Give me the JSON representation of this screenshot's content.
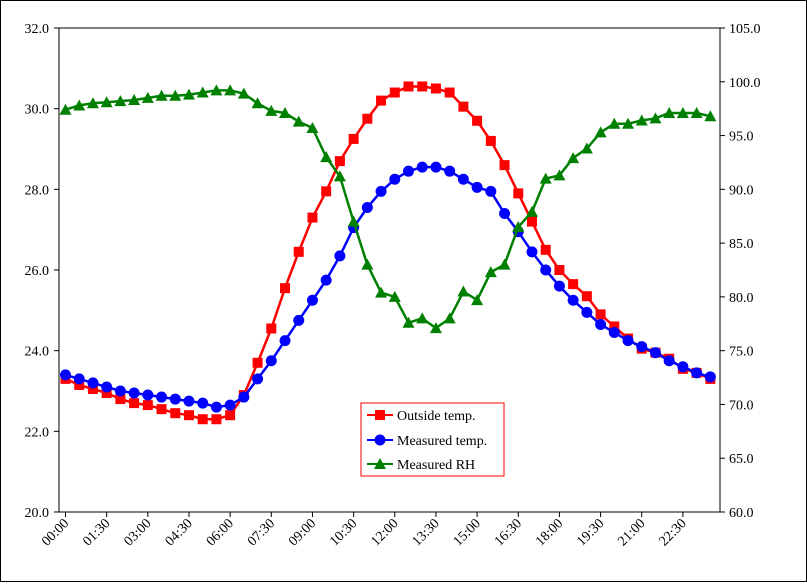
{
  "chart_data": {
    "type": "line",
    "title": "",
    "xlabel": "",
    "ylabel": "",
    "y2label": "",
    "x": [
      "00:00",
      "00:30",
      "01:00",
      "01:30",
      "02:00",
      "02:30",
      "03:00",
      "03:30",
      "04:00",
      "04:30",
      "05:00",
      "05:30",
      "06:00",
      "06:30",
      "07:00",
      "07:30",
      "08:00",
      "08:30",
      "09:00",
      "09:30",
      "10:00",
      "10:30",
      "11:00",
      "11:30",
      "12:00",
      "12:30",
      "13:00",
      "13:30",
      "14:00",
      "14:30",
      "15:00",
      "15:30",
      "16:00",
      "16:30",
      "17:00",
      "17:30",
      "18:00",
      "18:30",
      "19:00",
      "19:30",
      "20:00",
      "20:30",
      "21:00",
      "21:30",
      "22:00",
      "22:30",
      "23:00",
      "23:30"
    ],
    "x_tick_labels": [
      "00:00",
      "01:30",
      "03:00",
      "04:30",
      "06:00",
      "07:30",
      "09:00",
      "10:30",
      "12:00",
      "13:30",
      "15:00",
      "16:30",
      "18:00",
      "19:30",
      "21:00",
      "22:30"
    ],
    "ylim": [
      20,
      32
    ],
    "y_ticks": [
      "20.0",
      "22.0",
      "24.0",
      "26.0",
      "28.0",
      "30.0",
      "32.0"
    ],
    "y2lim": [
      60,
      105
    ],
    "y2_ticks": [
      "60.0",
      "65.0",
      "70.0",
      "75.0",
      "80.0",
      "85.0",
      "90.0",
      "95.0",
      "100.0",
      "105.0"
    ],
    "grid": false,
    "legend_position": "bottom-center",
    "series": [
      {
        "name": "Outside temp.",
        "axis": "left",
        "color": "#ff0000",
        "marker": "square",
        "values": [
          23.3,
          23.15,
          23.05,
          22.95,
          22.8,
          22.7,
          22.65,
          22.55,
          22.45,
          22.4,
          22.3,
          22.3,
          22.4,
          22.9,
          23.7,
          24.55,
          25.55,
          26.45,
          27.3,
          27.95,
          28.7,
          29.25,
          29.75,
          30.2,
          30.4,
          30.55,
          30.55,
          30.5,
          30.4,
          30.05,
          29.7,
          29.2,
          28.6,
          27.9,
          27.2,
          26.5,
          26.0,
          25.65,
          25.35,
          24.9,
          24.6,
          24.3,
          24.05,
          23.95,
          23.8,
          23.55,
          23.45,
          23.3
        ]
      },
      {
        "name": "Measured temp.",
        "axis": "left",
        "color": "#0000ff",
        "marker": "circle",
        "values": [
          23.4,
          23.3,
          23.2,
          23.1,
          23.0,
          22.95,
          22.9,
          22.85,
          22.8,
          22.75,
          22.7,
          22.6,
          22.65,
          22.85,
          23.3,
          23.75,
          24.25,
          24.75,
          25.25,
          25.75,
          26.35,
          27.05,
          27.55,
          27.95,
          28.25,
          28.45,
          28.55,
          28.55,
          28.45,
          28.25,
          28.05,
          27.95,
          27.4,
          26.95,
          26.45,
          26.0,
          25.6,
          25.25,
          24.95,
          24.65,
          24.45,
          24.25,
          24.1,
          23.95,
          23.75,
          23.6,
          23.45,
          23.35
        ]
      },
      {
        "name": "Measured RH",
        "axis": "right",
        "color": "#008000",
        "marker": "triangle",
        "values": [
          97.4,
          97.8,
          98.0,
          98.1,
          98.2,
          98.3,
          98.5,
          98.7,
          98.7,
          98.8,
          99.0,
          99.2,
          99.2,
          98.9,
          98.0,
          97.3,
          97.1,
          96.3,
          95.7,
          93.0,
          91.2,
          87.0,
          83.0,
          80.4,
          80.0,
          77.6,
          78.0,
          77.1,
          78.0,
          80.5,
          79.7,
          82.3,
          83.0,
          86.5,
          87.9,
          91.0,
          91.3,
          92.9,
          93.8,
          95.3,
          96.1,
          96.1,
          96.4,
          96.6,
          97.1,
          97.1,
          97.1,
          96.8
        ]
      }
    ]
  }
}
